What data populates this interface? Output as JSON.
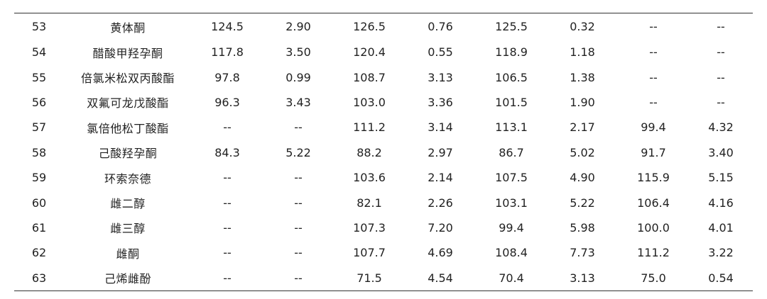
{
  "rows": [
    {
      "id": "53",
      "name": "黄体酮",
      "v": [
        "124.5",
        "2.90",
        "126.5",
        "0.76",
        "125.5",
        "0.32",
        "--",
        "--"
      ]
    },
    {
      "id": "54",
      "name": "醋酸甲羟孕酮",
      "v": [
        "117.8",
        "3.50",
        "120.4",
        "0.55",
        "118.9",
        "1.18",
        "--",
        "--"
      ]
    },
    {
      "id": "55",
      "name": "倍氯米松双丙酸酯",
      "v": [
        "97.8",
        "0.99",
        "108.7",
        "3.13",
        "106.5",
        "1.38",
        "--",
        "--"
      ]
    },
    {
      "id": "56",
      "name": "双氟可龙戊酸酯",
      "v": [
        "96.3",
        "3.43",
        "103.0",
        "3.36",
        "101.5",
        "1.90",
        "--",
        "--"
      ]
    },
    {
      "id": "57",
      "name": "氯倍他松丁酸酯",
      "v": [
        "--",
        "--",
        "111.2",
        "3.14",
        "113.1",
        "2.17",
        "99.4",
        "4.32"
      ]
    },
    {
      "id": "58",
      "name": "己酸羟孕酮",
      "v": [
        "84.3",
        "5.22",
        "88.2",
        "2.97",
        "86.7",
        "5.02",
        "91.7",
        "3.40"
      ]
    },
    {
      "id": "59",
      "name": "环索奈德",
      "v": [
        "--",
        "--",
        "103.6",
        "2.14",
        "107.5",
        "4.90",
        "115.9",
        "5.15"
      ]
    },
    {
      "id": "60",
      "name": "雌二醇",
      "v": [
        "--",
        "--",
        "82.1",
        "2.26",
        "103.1",
        "5.22",
        "106.4",
        "4.16"
      ]
    },
    {
      "id": "61",
      "name": "雌三醇",
      "v": [
        "--",
        "--",
        "107.3",
        "7.20",
        "99.4",
        "5.98",
        "100.0",
        "4.01"
      ]
    },
    {
      "id": "62",
      "name": "雌酮",
      "v": [
        "--",
        "--",
        "107.7",
        "4.69",
        "108.4",
        "7.73",
        "111.2",
        "3.22"
      ]
    },
    {
      "id": "63",
      "name": "己烯雌酚",
      "v": [
        "--",
        "--",
        "71.5",
        "4.54",
        "70.4",
        "3.13",
        "75.0",
        "0.54"
      ]
    }
  ]
}
